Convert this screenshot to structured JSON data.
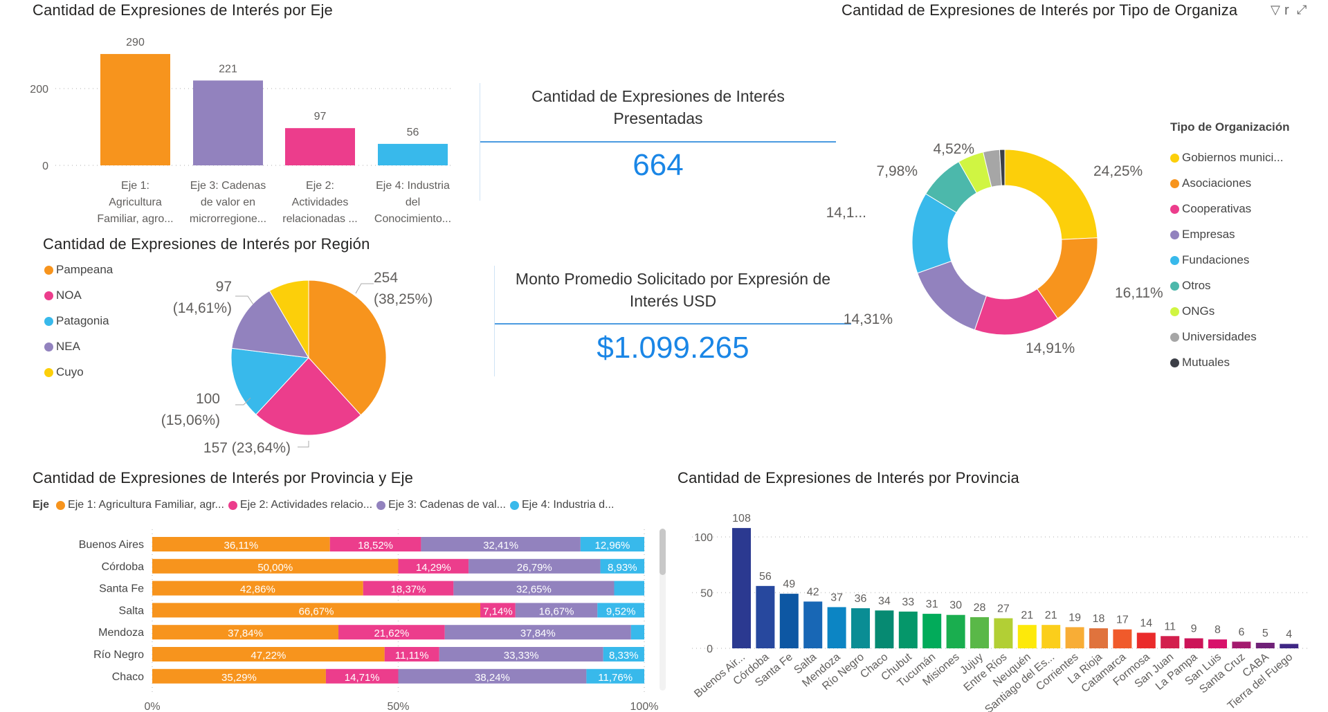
{
  "colors": {
    "eje1": "#f7941d",
    "eje2": "#ec3d8c",
    "eje3": "#9282be",
    "eje4": "#38b9eb",
    "kpi": "#1a86e6"
  },
  "eje_chart": {
    "title": "Cantidad de Expresiones de Interés por Eje",
    "chart_data": {
      "type": "bar",
      "categories": [
        [
          "Eje 1:",
          "Agricultura",
          "Familiar, agro..."
        ],
        [
          "Eje 3: Cadenas",
          "de valor en",
          "microrregione..."
        ],
        [
          "Eje 2:",
          "Actividades",
          "relacionadas ..."
        ],
        [
          "Eje 4: Industria",
          "del",
          "Conocimiento..."
        ]
      ],
      "values": [
        290,
        221,
        97,
        56
      ],
      "value_labels": [
        "290",
        "221",
        "97",
        "56"
      ],
      "colors": [
        "#f7941d",
        "#9282be",
        "#ec3d8c",
        "#38b9eb"
      ],
      "yticks": [
        "0",
        "200"
      ],
      "ylim": [
        0,
        300
      ],
      "grid": true
    }
  },
  "kpi_presentadas": {
    "title_line1": "Cantidad de Expresiones de Interés",
    "title_line2": "Presentadas",
    "value": "664"
  },
  "kpi_monto": {
    "title_line1": "Monto Promedio Solicitado por Expresión de",
    "title_line2": "Interés USD",
    "value": "$1.099.265"
  },
  "region_chart": {
    "title": "Cantidad de Expresiones de Interés por Región",
    "chart_data": {
      "type": "pie",
      "categories": [
        "Pampeana",
        "NOA",
        "Patagonia",
        "NEA",
        "Cuyo"
      ],
      "values": [
        254,
        157,
        100,
        97,
        56
      ],
      "colors": [
        "#f7941d",
        "#ec3d8c",
        "#38b9eb",
        "#9282be",
        "#fccf0a"
      ],
      "labels": [
        [
          "254",
          "(38,25%)"
        ],
        [
          "157 (23,64%)"
        ],
        [
          "100",
          "(15,06%)"
        ],
        [
          "97",
          "(14,61%)"
        ],
        []
      ],
      "legend": "left"
    }
  },
  "org_chart": {
    "title": "Cantidad de Expresiones de Interés por Tipo de Organiza",
    "title_tail": "r",
    "icons": [
      "filter-icon",
      "expand-icon"
    ],
    "chart_data": {
      "type": "pie",
      "donut": true,
      "legend_title": "Tipo de Organización",
      "categories": [
        "Gobiernos munici...",
        "Asociaciones",
        "Cooperativas",
        "Empresas",
        "Fundaciones",
        "Otros",
        "ONGs",
        "Universidades",
        "Mutuales"
      ],
      "values": [
        24.25,
        16.11,
        14.91,
        14.31,
        14.16,
        7.98,
        4.52,
        2.86,
        0.9
      ],
      "colors": [
        "#fccf0a",
        "#f7941d",
        "#ec3d8c",
        "#9282be",
        "#38b9eb",
        "#4cb8ab",
        "#d0f542",
        "#a6a6a6",
        "#3c3f47"
      ],
      "labels": [
        "24,25%",
        "16,11%",
        "14,91%",
        "14,31%",
        "14,1...",
        "7,98%",
        "4,52%",
        "",
        ""
      ],
      "legend": "right"
    }
  },
  "prov_eje_chart": {
    "title": "Cantidad de Expresiones de Interés por Provincia y Eje",
    "legend_title": "Eje",
    "chart_data": {
      "type": "bar",
      "orientation": "horizontal",
      "stacked_percent": true,
      "series": [
        {
          "name": "Eje 1: Agricultura Familiar, agr...",
          "values": [
            36.11,
            50.0,
            42.86,
            66.67,
            37.84,
            47.22,
            35.29
          ]
        },
        {
          "name": "Eje 2: Actividades relacio...",
          "values": [
            18.52,
            14.29,
            18.37,
            7.14,
            21.62,
            11.11,
            14.71
          ]
        },
        {
          "name": "Eje 3: Cadenas de val...",
          "values": [
            32.41,
            26.79,
            32.65,
            16.67,
            37.84,
            33.33,
            38.24
          ]
        },
        {
          "name": "Eje 4: Industria d...",
          "values": [
            12.96,
            8.93,
            6.12,
            9.52,
            2.7,
            8.33,
            11.76
          ]
        }
      ],
      "categories": [
        "Buenos Aires",
        "Córdoba",
        "Santa Fe",
        "Salta",
        "Mendoza",
        "Río Negro",
        "Chaco"
      ],
      "xticks": [
        "0%",
        "50%",
        "100%"
      ],
      "xlim": [
        0,
        100
      ]
    }
  },
  "prov_chart": {
    "title": "Cantidad de Expresiones de Interés por Provincia",
    "chart_data": {
      "type": "bar",
      "categories": [
        "Buenos Air...",
        "Córdoba",
        "Santa Fe",
        "Salta",
        "Mendoza",
        "Río Negro",
        "Chaco",
        "Chubut",
        "Tucumán",
        "Misiones",
        "Jujuy",
        "Entre Ríos",
        "Neuquén",
        "Santiago del Es...",
        "Corrientes",
        "La Rioja",
        "Catamarca",
        "Formosa",
        "San Juan",
        "La Pampa",
        "San Luis",
        "Santa Cruz",
        "CABA",
        "Tierra del Fuego"
      ],
      "values": [
        108,
        56,
        49,
        42,
        37,
        36,
        34,
        33,
        31,
        30,
        28,
        27,
        21,
        21,
        19,
        18,
        17,
        14,
        11,
        9,
        8,
        6,
        5,
        4
      ],
      "colors": [
        "#2b3990",
        "#27489e",
        "#0d57a3",
        "#1867b5",
        "#0c85c4",
        "#0a8d94",
        "#068a72",
        "#05976a",
        "#02ab5a",
        "#1aae4f",
        "#5ab848",
        "#b2cf35",
        "#fde90a",
        "#fbce1b",
        "#f8ad36",
        "#e0733d",
        "#f05a2b",
        "#ea2b2b",
        "#d31f4d",
        "#cc1458",
        "#d8126b",
        "#a41a6e",
        "#6f2177",
        "#3f2785"
      ],
      "yticks": [
        "0",
        "50",
        "100"
      ],
      "ylim": [
        0,
        110
      ],
      "grid": true
    }
  }
}
